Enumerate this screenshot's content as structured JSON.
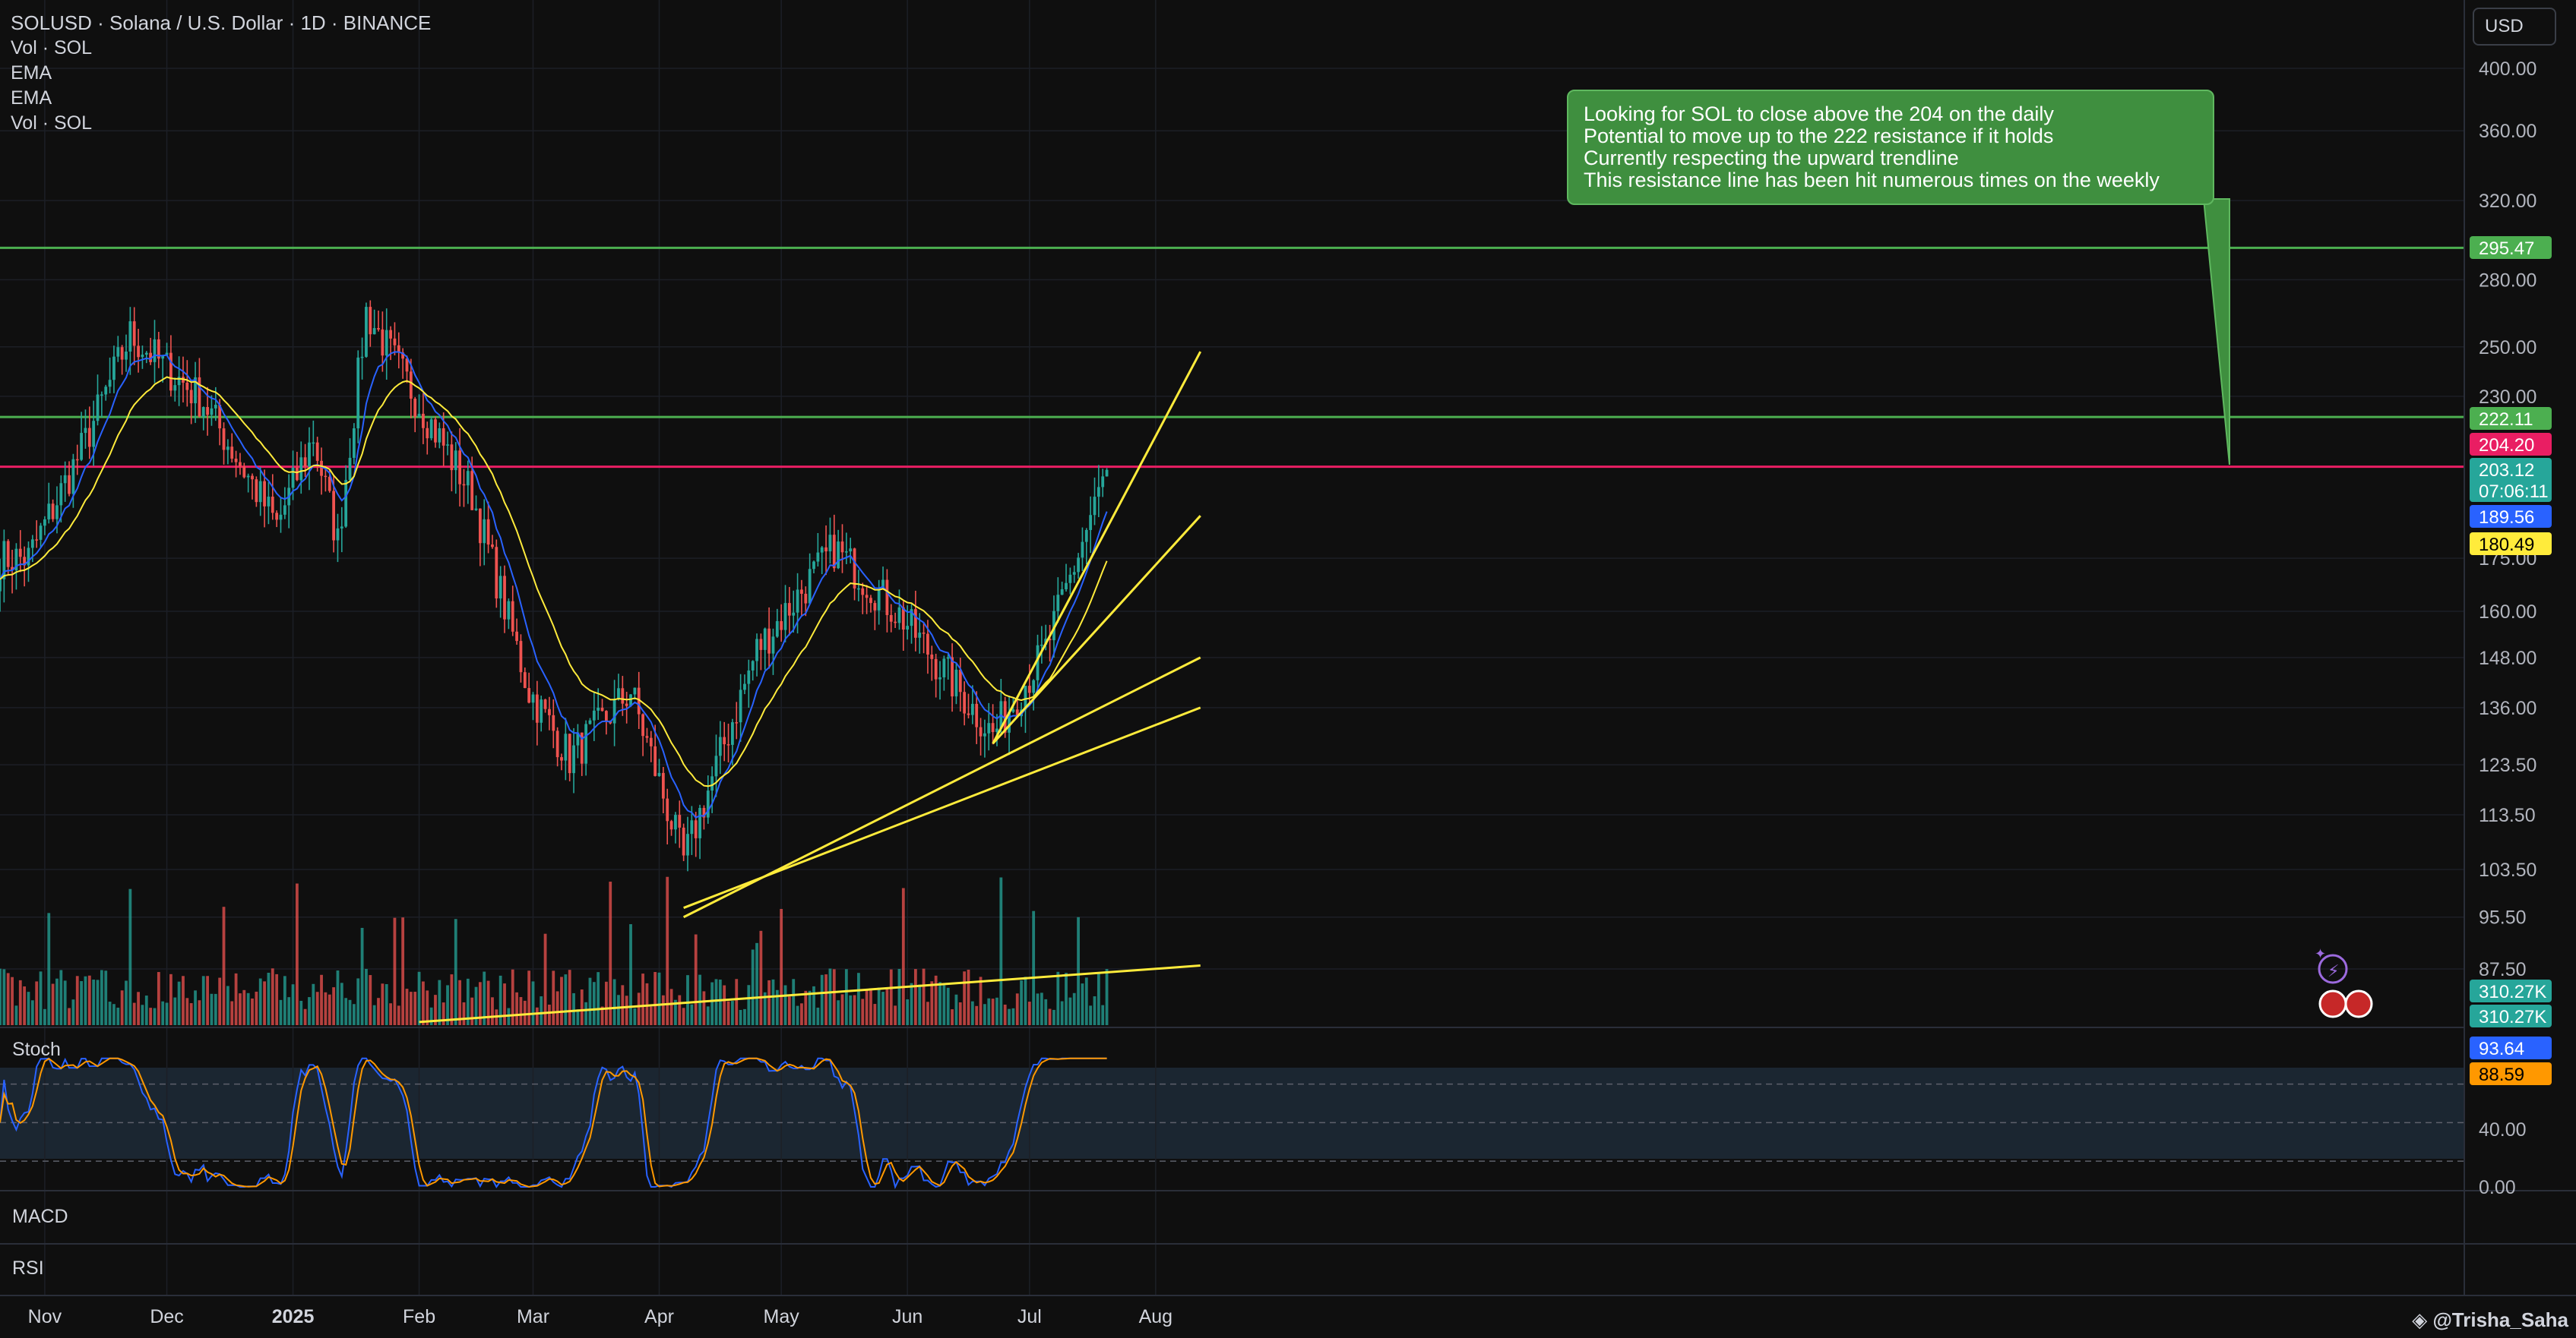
{
  "header": {
    "title": "SOLUSD · Solana / U.S. Dollar · 1D · BINANCE",
    "indicators": [
      "Vol · SOL",
      "EMA",
      "EMA",
      "Vol · SOL"
    ],
    "currency": "USD"
  },
  "annotation": {
    "lines": [
      "Looking for SOL to close above the 204 on the daily",
      "Potential to move up to the 222 resistance if it holds",
      "Currently respecting the upward trendline",
      "This resistance line has been hit numerous times on the weekly"
    ]
  },
  "panes": {
    "stoch": "Stoch",
    "macd": "MACD",
    "rsi": "RSI"
  },
  "watermark": "@Trisha_Saha",
  "colors": {
    "bg": "#0f0f0f",
    "up": "#26a69a",
    "down": "#ef5350",
    "green_line": "#4caf50",
    "magenta_line": "#e91e63",
    "trend": "#ffeb3b",
    "ema_fast": "#2962ff",
    "ema_slow": "#ffeb3b",
    "stoch_k": "#2962ff",
    "stoch_d": "#ff9800"
  },
  "chart_data": {
    "type": "candlestick",
    "symbol": "SOLUSD",
    "timeframe": "1D",
    "x_labels": [
      "Nov",
      "Dec",
      "2025",
      "Feb",
      "Mar",
      "Apr",
      "May",
      "Jun",
      "Jul",
      "Aug"
    ],
    "y_ticks": [
      400.0,
      360.0,
      320.0,
      280.0,
      250.0,
      230.0,
      175.0,
      160.0,
      148.0,
      136.0,
      123.5,
      113.5,
      103.5,
      95.5,
      87.5
    ],
    "y_scale": "log",
    "price_badges": [
      {
        "label": "295.47",
        "value": 295.47,
        "color": "#4caf50"
      },
      {
        "label": "222.11",
        "value": 222.11,
        "color": "#4caf50"
      },
      {
        "label": "204.20",
        "value": 204.2,
        "color": "#e91e63"
      },
      {
        "label": "203.12",
        "value": 203.12,
        "color": "#26a69a",
        "sub": "07:06:11"
      },
      {
        "label": "189.56",
        "value": 189.56,
        "color": "#2962ff"
      },
      {
        "label": "180.49",
        "value": 180.49,
        "color": "#ffeb3b"
      }
    ],
    "horizontal_lines": [
      {
        "value": 295.47,
        "color": "#4caf50"
      },
      {
        "value": 222.11,
        "color": "#4caf50"
      },
      {
        "value": 204.2,
        "color": "#e91e63"
      }
    ],
    "volume_badges": [
      "310.27K",
      "310.27K"
    ],
    "stoch_ticks": [
      "40.00",
      "0.00"
    ],
    "stoch_badges": [
      {
        "label": "93.64",
        "color": "#2962ff"
      },
      {
        "label": "88.59",
        "color": "#ff9800"
      }
    ],
    "key_closes": [
      {
        "date": "2024-10-28",
        "close": 175
      },
      {
        "date": "2024-11-10",
        "close": 210
      },
      {
        "date": "2024-11-22",
        "close": 255
      },
      {
        "date": "2024-12-10",
        "close": 228
      },
      {
        "date": "2024-12-28",
        "close": 185
      },
      {
        "date": "2025-01-06",
        "close": 215
      },
      {
        "date": "2025-01-12",
        "close": 180
      },
      {
        "date": "2025-01-19",
        "close": 265
      },
      {
        "date": "2025-01-31",
        "close": 230
      },
      {
        "date": "2025-02-14",
        "close": 195
      },
      {
        "date": "2025-02-28",
        "close": 140
      },
      {
        "date": "2025-03-10",
        "close": 125
      },
      {
        "date": "2025-03-25",
        "close": 140
      },
      {
        "date": "2025-04-07",
        "close": 105
      },
      {
        "date": "2025-04-25",
        "close": 150
      },
      {
        "date": "2025-05-14",
        "close": 178
      },
      {
        "date": "2025-05-31",
        "close": 158
      },
      {
        "date": "2025-06-22",
        "close": 130
      },
      {
        "date": "2025-07-05",
        "close": 150
      },
      {
        "date": "2025-07-20",
        "close": 203.12
      }
    ]
  }
}
